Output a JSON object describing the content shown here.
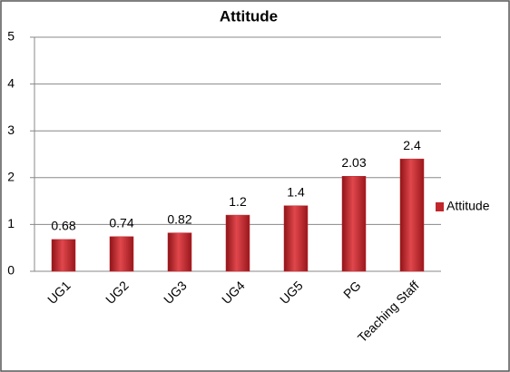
{
  "chart_data": {
    "type": "bar",
    "title": "Attitude",
    "categories": [
      "UG1",
      "UG2",
      "UG3",
      "UG4",
      "UG5",
      "PG",
      "Teaching Staff"
    ],
    "series": [
      {
        "name": "Attitude",
        "color": "#c0262c",
        "values": [
          0.68,
          0.74,
          0.82,
          1.2,
          1.4,
          2.03,
          2.4
        ]
      }
    ],
    "ylim": [
      0,
      5
    ],
    "yticks": [
      0,
      1,
      2,
      3,
      4,
      5
    ],
    "grid": true,
    "legend": "right"
  }
}
